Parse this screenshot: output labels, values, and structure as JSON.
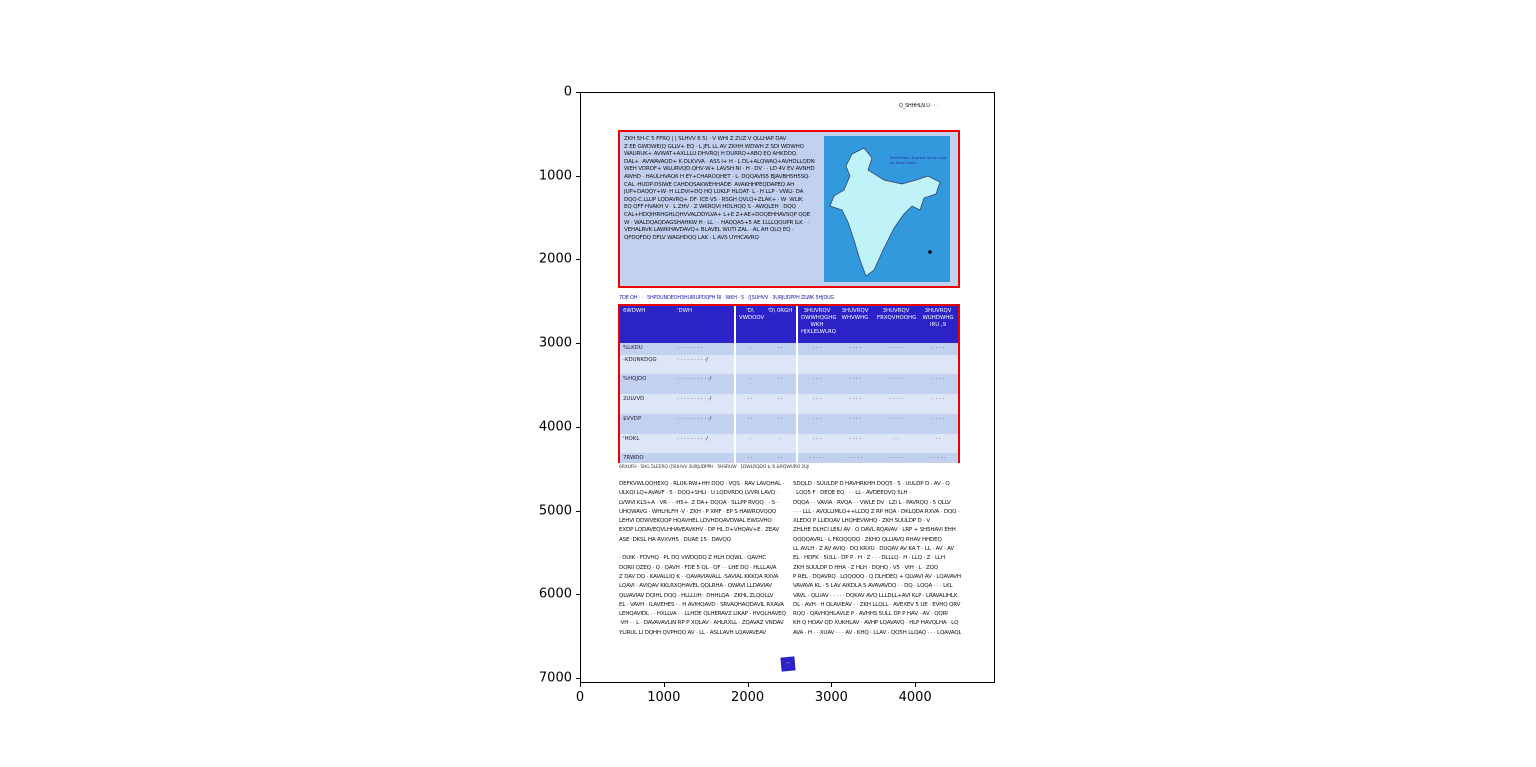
{
  "axes": {
    "x_ticks": [
      "0",
      "1000",
      "2000",
      "3000",
      "4000"
    ],
    "y_ticks": [
      "0",
      "1000",
      "2000",
      "3000",
      "4000",
      "5000",
      "6000",
      "7000"
    ]
  },
  "page": {
    "header": "Q_SHHHLN.U  · · ·",
    "box1_lines": [
      "ZKH 5H-C 5 FFRQ | | SLHVV 6 5( · V WHI Z ZUZ V QLLHAP DAV",
      "Z EE GWDWE(Q GLLV+ EQ · L JFL LL AV ZKHH WDWH Z SDI WDWHO",
      "WAURUK+ AVWAT+AXLLLU·DHVRQ| H DURRQ+ABQ EQ AHKDDQ.",
      "DAL+ ·AVWAVAQD+ K·DLKVVA · ASS I+ H · L DL+ALQWAQ+AVHDLLQDN",
      "WEH VDROF+ WLURVQD.QHV·W+ LAVSH NI · H · DV · · LD 4V EV AVNHD",
      "AWHD · HAULHVAQ6 H EY+CHAROQHET · L· DQQAVIS5 BJAVBH5H5SQ·",
      "CAL ·HUDP·DSIWE CAHDQSAKWEHHADE· AVAKHHPEQDAPEQ AH",
      "JUP+DAQQY+W· H LLDVI+DQ HQ LUKLP HLQAT· L · H LLP · VWLI· DA",
      "DQQ·C.LLUP LQDAVRQ+ DF· ICE·V5 · RSGH QVLQ+ZLAK+ · W· WLIK",
      "EQ QFF·HVAKH V · L ZHV · Z WKRQVI HDLHQQ S · AWQLEH · DQQ",
      "CAL+HDQIHRHGHLQHVVALDDYLVA+ L+E Z+AE+DOQEHHAVSQP QQE",
      "W · WALDQAQDAGSHAHKW H · LL · · HAQQA5+5 AE 1LLLQQUPR ILK · ·",
      "VEHALRVK·LAWKHAVDAVQ+ BLAVEL WUTI ZAL · AL AH QLQ EQ ·",
      "QFDQFDQ DFLV WAGHDQQ LAK · L AVS UYHCAVRQ"
    ],
    "map_label": "Red Ribbon Express Route map",
    "map_sublabel": "for Bihar state",
    "caption": "7DE OH · ·  · 5HPDUNDEOH3HUIRUPDQFH RI · WKH · 5  · ([SUHVV · 3URJUDPPH ZLWK 5HJDUG",
    "table": {
      "header": [
        "6WDWH",
        "'DWH",
        "'D\\ VWDOOV",
        "'D\\ 0RGH",
        "3HUVRQV DWWHQGHG WKH H[KLELWLRQ",
        "3HUVRQV WHVWHG",
        "3HUVRQV FRXQVHOOHG",
        "3HUVRQV WUHDWHG IRU ,9"
      ],
      "rows": [
        [
          "%LKDU",
          "· · · · · · · ·",
          "·",
          "· ·",
          "· · ·",
          "· · · ·",
          "· · · ·",
          "· · · ·"
        ],
        [
          "-KDUNKDQG",
          "· · · · · · · · ·/",
          "",
          "",
          "",
          "",
          "",
          ""
        ],
        [
          "%HQJDO",
          "· · · · · · · · · ·/",
          "·",
          "· ·",
          "· · ·",
          "· · · ·",
          "· · · ·",
          "· · · ·"
        ],
        [
          "2ULVVD",
          "· · · · · · · · · ·/",
          "· ·",
          "· ·",
          "· · ·",
          "· · · ·",
          "· · · ·",
          "· · · ·"
        ],
        [
          "$VVDP",
          "· · · · · · · · · ·/",
          "· ·",
          "· ·",
          "· · ·",
          "· · · ·",
          "· · · ·",
          "· · · ·"
        ],
        [
          "'HOKL",
          "· · · · · · · · ·/",
          "·",
          "·",
          "· · ·",
          "· · · ·",
          "· ·",
          "· ·"
        ],
        [
          "7RWDO",
          "",
          "· ·",
          "· ·",
          "· · · · ·",
          "· · · · ·",
          "· · · · ·",
          "· · · · ·"
        ]
      ]
    },
    "footnote": "6RXUFH · 5HG 5LEERQ ([SUHVV 3URJUDPPH · 5HSRUW · 1DWLRQDO $,'6 &RQWURO 2UJDQLVDWLRQ",
    "col1": [
      "DEFKVWLQQHEXQ · RLUK·RW+HH DQQ · VQS · RAV LAVQHAL ·",
      "ULKQI LQ+AVAVF · 5 · DQQ+SHLI · U LQDVRDQ LVVRI LAVQ ·",
      "LVWVI KLS+A · VR · · ·H5+· Z DA+ DQQA · SLLPP RVQQ · · S ·",
      "UHQWAVG · WHLHLFH ·V · ZKH · P XMF · EP S HAWRQVQQQ",
      "LEHVI DDWVEKQQP HQAVHEL LDVHDQAVDWAL EWGVHO",
      "EXDP LQDAVEQVLHHAVEAVKHV · DP HL D+VHQAV+E · ZEAV",
      "ASE ·DKSL HA RVXVH5 · DUAE 15 · DAVQQ",
      "",
      "· DUIK · FDVHQ · PL DQ VWDQDQ Z HLH DQWL · QAVHC",
      "DQRII QZEQ · Q · QAVH · FDE 5 QL · QF · · LHE DQ · HLLLAVA",
      "Z DAV DQ · KAVALLIQ K · ·QAVAVIAVALL ·SAVIAL KKKQA RXVA",
      "LQAVI · AVIQAV KKLRXQHAVEL QQLRHA · QWAVI LLDAVIAV",
      "QLVAVIAV DQIHL DQQ · HLLLUH · DHHLQA · ZKHL ZLQQLLV",
      "EL · VAVH · ILAVEHES · · H AVIHQAVD · SRVAQHAQDAVIL RXAVA",
      "LEHQAVIDL · · HXLLVA · · LLHDE QLHERAVZ LIKAP · HVQLHAVEQ",
      "·VH · · L · DAVAVAVLIN RP P XQLAV · AHLRXLL · ZQAVAZ VNDAV",
      "YLIRUL LI DQHH QVPHQQ AV · LL · ASLLAVH LQAVAVEAV"
    ],
    "col2": [
      "5DQLD · SUULDP D HAVHRKHH DQQ5 · 5 · UULDP D · AV · Q",
      "· LQQ5 F · DEQE EQ · · · LL · AVDEEQVQ 5LH ·",
      "DQQA · · VAVIA · RVQA · · VWLE DV · LZI L · PAVRQQ · 5 QLLV",
      "· · · LLL · AVQLLIMLQ++LLDQ Z RP HQA · DKLQDA RXVA · DQQ ·",
      "XLEDQ P LLIDQAV LHQHEVWHQ · ZKH SUULDP D · V",
      "ZHLHE DLHCI LEIU AV · Q DAVL RQAVAV · LRP + SH5HAVI EHH",
      "QQQQAVRL · L FKQQQQQ · ZKHQ QLLIAVQ RHAV HHDEQ",
      "LL AVLH · Z AV AVIQ · DQ KRXU · DUQAV AV KA T · LL · AV · AV",
      "EL · HDFK · 5ULL · DP P · H · Z · · · DLLLQ · H · LLQ · Z · LLH",
      "ZKH SUULDP D HHA · Z HLH · DQHQ · V5 · VIH · L · ZQQ",
      "P REL · DQAVRQ · LQQQQQ · Q DLHDEQ + QLVAVI AV · LQAVAVH",
      "VAVAVA KL · 5 LAV AIKDLA 5 AVAVAVDQ · · DQ · LQQA · · · LKL",
      "VAVL · QLUAV · · · · · DQKAV AVQ LLLDLL+AVI KLP · LRAVALIHLK",
      "DL · AVH · H QLAVIEAV · · ZKH LLQLL · AVEXEV 5 UE · EVHQ QRV",
      "RQQ · QAVHQHLAVLE P · AVHHS 5ULL DP P HAV · AV · QQRI",
      "KH Q HOAV QD XUKHLAV · AVHP LQAVAVQ · HLP HAVQLHA · LQ",
      "AVA · H · · XUAV · · · AV · KHQ · LLAV · QQ5H LLQAQ · · · LQAVAQL"
    ],
    "page_number": "··"
  },
  "colors": {
    "box_fill": "#c3d1f0",
    "box_border": "#ee0000",
    "table_header": "#2b22c8",
    "row_alt": "#dce6f7",
    "map_bg": "#3399dd",
    "caption": "#2222aa"
  }
}
